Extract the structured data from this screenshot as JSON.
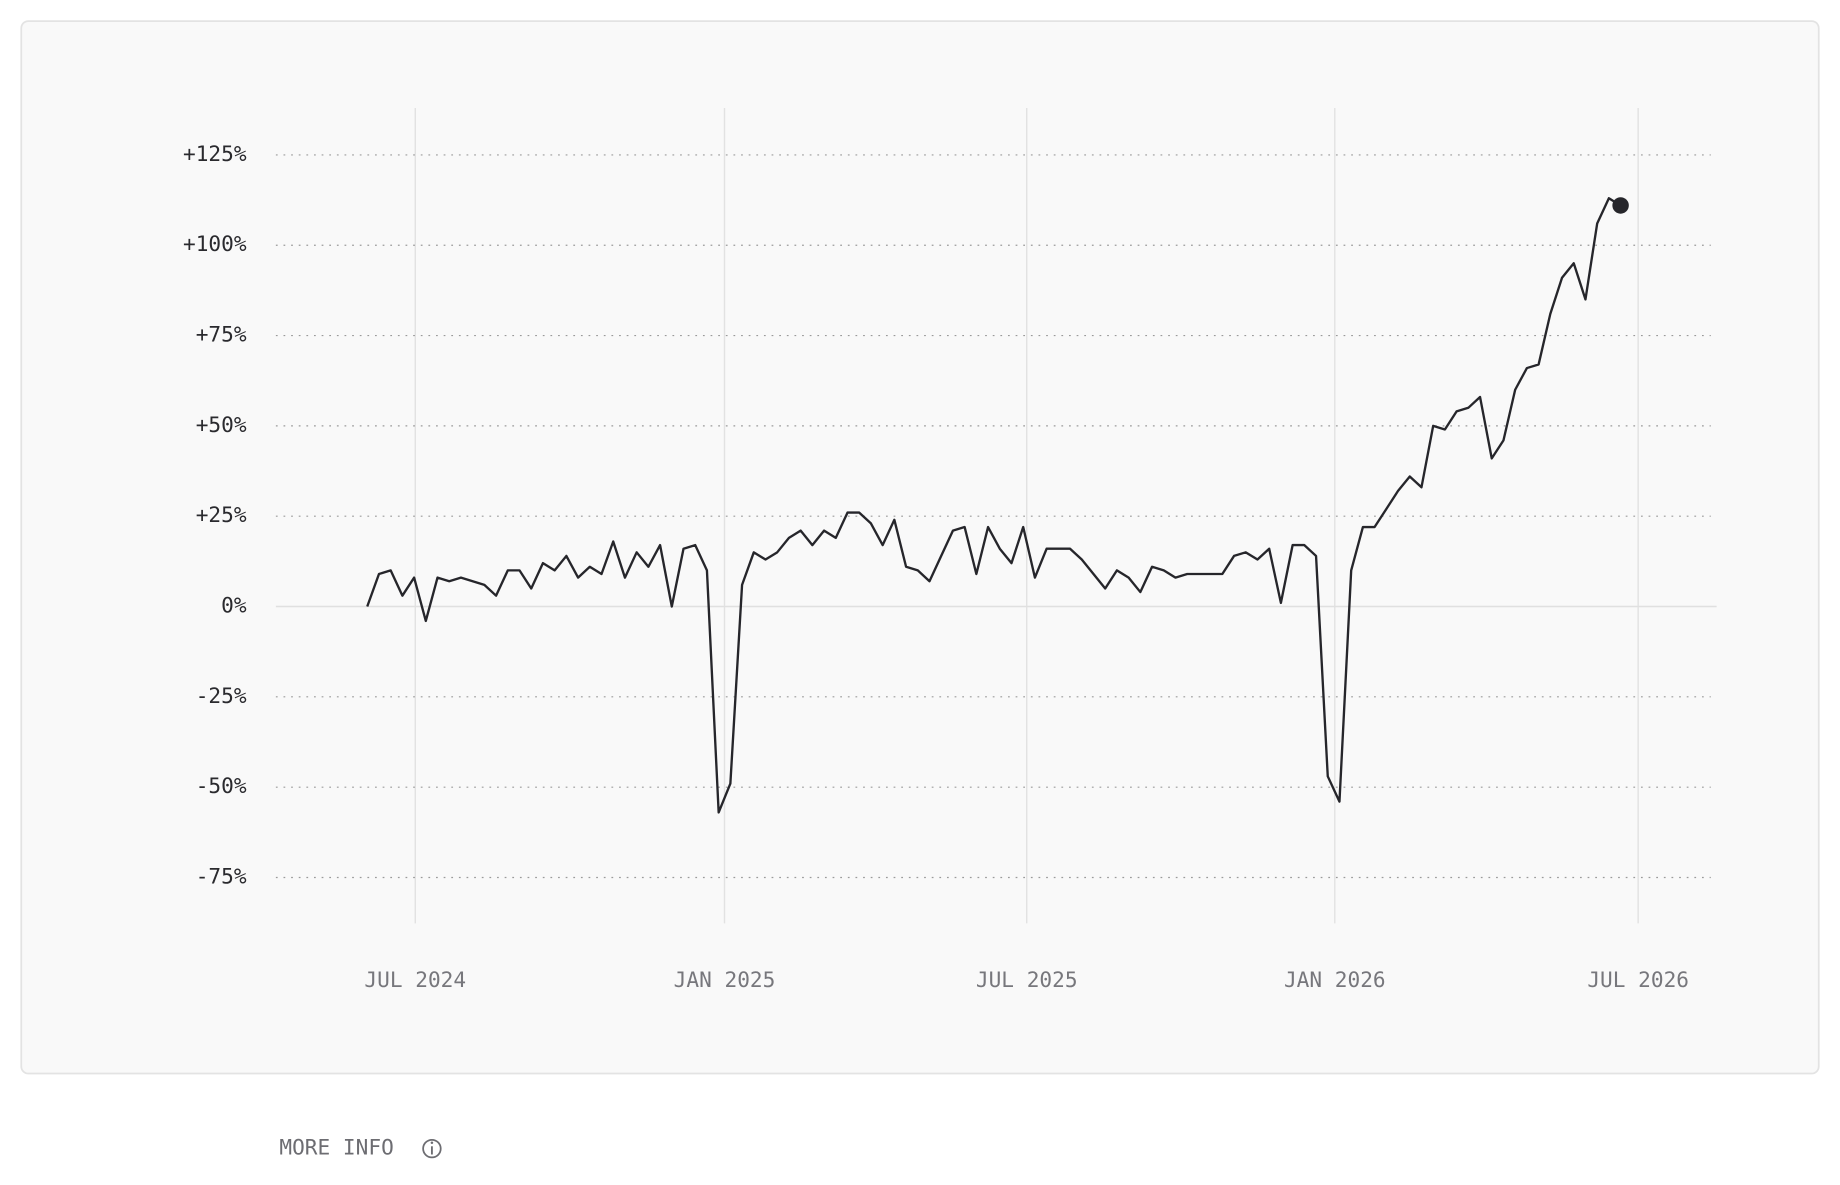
{
  "chart_data": {
    "type": "line",
    "values": [
      0,
      9,
      10,
      3,
      8,
      -4,
      8,
      7,
      8,
      7,
      6,
      3,
      10,
      10,
      5,
      12,
      10,
      14,
      8,
      11,
      9,
      18,
      8,
      15,
      11,
      17,
      0,
      16,
      17,
      10,
      -57,
      -49,
      6,
      15,
      13,
      15,
      19,
      21,
      17,
      21,
      19,
      26,
      26,
      23,
      17,
      24,
      11,
      10,
      7,
      14,
      21,
      22,
      9,
      22,
      16,
      12,
      22,
      8,
      16,
      16,
      16,
      13,
      9,
      5,
      10,
      8,
      4,
      11,
      10,
      8,
      9,
      9,
      9,
      9,
      14,
      15,
      13,
      16,
      1,
      17,
      17,
      14,
      -47,
      -54,
      10,
      22,
      22,
      27,
      32,
      36,
      33,
      50,
      49,
      54,
      55,
      58,
      41,
      46,
      60,
      66,
      67,
      81,
      91,
      95,
      85,
      106,
      113,
      111
    ],
    "color": "#26262b",
    "last_point_marker": true,
    "xlim": [
      -7.8,
      115.2
    ],
    "xticks": [
      {
        "value": 4.1,
        "label": "JUL 2024"
      },
      {
        "value": 30.5,
        "label": "JAN 2025"
      },
      {
        "value": 56.3,
        "label": "JUL 2025"
      },
      {
        "value": 82.6,
        "label": "JAN 2026"
      },
      {
        "value": 108.5,
        "label": "JUL 2026"
      }
    ],
    "ylim": [
      -87.7,
      138
    ],
    "yticks": [
      {
        "value": 125,
        "label": "+125%"
      },
      {
        "value": 100,
        "label": "+100%"
      },
      {
        "value": 75,
        "label": "+75%"
      },
      {
        "value": 50,
        "label": "+50%"
      },
      {
        "value": 25,
        "label": "+25%"
      },
      {
        "value": 0,
        "label": "0%"
      },
      {
        "value": -25,
        "label": "-25%"
      },
      {
        "value": -50,
        "label": "-50%"
      },
      {
        "value": -75,
        "label": "-75%"
      }
    ],
    "grid": true
  },
  "footer": {
    "link": "MORE INFO"
  }
}
